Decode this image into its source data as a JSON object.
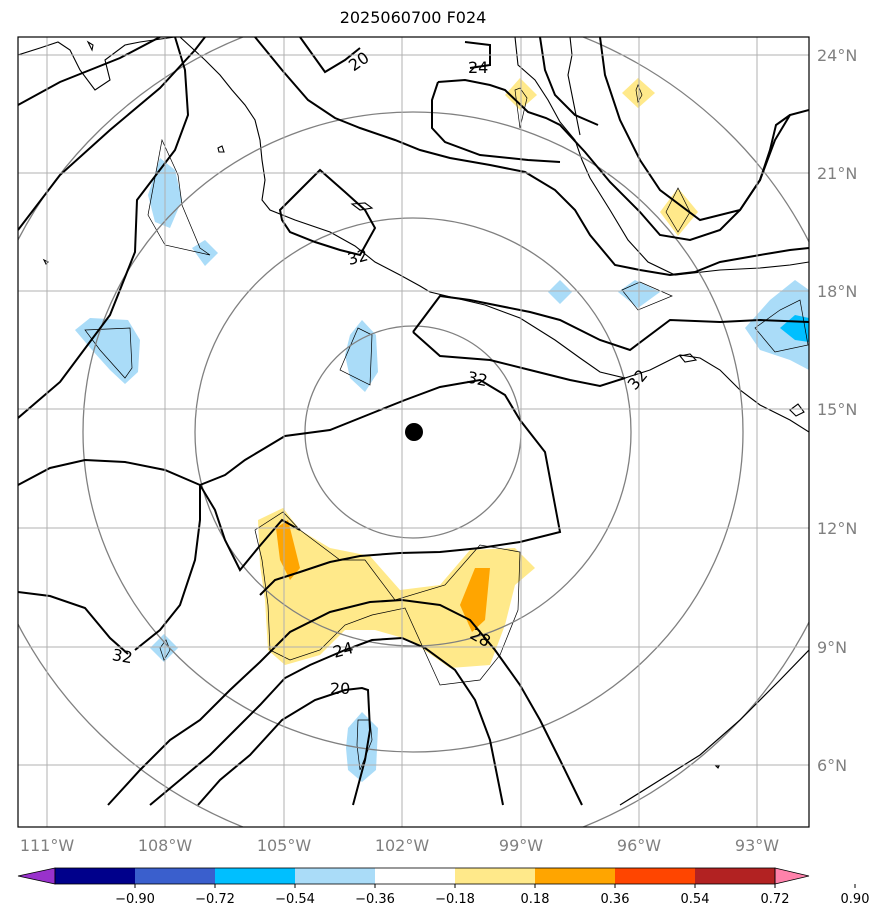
{
  "title": "2025060700 F024",
  "map": {
    "lon_range": [
      -112,
      -92
    ],
    "lat_range": [
      4.5,
      24.5
    ],
    "lon_ticks": [
      "111°W",
      "108°W",
      "105°W",
      "102°W",
      "99°W",
      "96°W",
      "93°W"
    ],
    "lat_ticks": [
      "24°N",
      "21°N",
      "18°N",
      "15°N",
      "12°N",
      "9°N",
      "6°N"
    ],
    "grid": true,
    "storm_center": {
      "lon": -101.7,
      "lat": 14.5
    },
    "contour_labels": [
      "20",
      "24",
      "32",
      "32",
      "32",
      "32",
      "24",
      "20",
      "28"
    ]
  },
  "colorbar": {
    "ticks": [
      "−0.90",
      "−0.72",
      "−0.54",
      "−0.36",
      "−0.18",
      "0.18",
      "0.36",
      "0.54",
      "0.72",
      "0.90"
    ],
    "colors": [
      "#9932cc",
      "#00008b",
      "#3a5fcd",
      "#00bfff",
      "#aadcf8",
      "#ffffff",
      "#ffe98a",
      "#ffa500",
      "#ff4500",
      "#b22222",
      "#ff82ab"
    ],
    "extend": "both"
  }
}
